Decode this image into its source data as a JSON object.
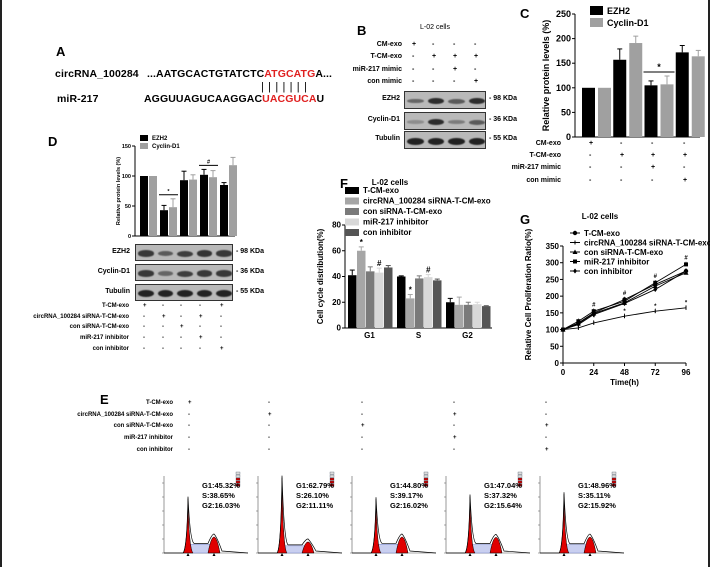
{
  "panelA": {
    "label": "A",
    "circ_name": "circRNA_100284",
    "circ_seq_prefix": "...AATGCACTGTATCTC",
    "circ_seq_match": "ATGCATG",
    "circ_seq_suffix": "A...",
    "mir_name": "miR-217",
    "mir_seq_prefix": "AGGUUAGUCAAGGAC",
    "mir_seq_match": "UACGUCA",
    "mir_seq_suffix": "U",
    "pairing": "|||||||",
    "match_color": "#e02020"
  },
  "panelB": {
    "label": "B",
    "title": "L-02 cells",
    "rows": [
      {
        "name": "CM-exo",
        "values": [
          "+",
          "-",
          "-",
          "-"
        ]
      },
      {
        "name": "T-CM-exo",
        "values": [
          "-",
          "+",
          "+",
          "+"
        ]
      },
      {
        "name": "miR-217 mimic",
        "values": [
          "-",
          "-",
          "+",
          "-"
        ]
      },
      {
        "name": "con mimic",
        "values": [
          "-",
          "-",
          "-",
          "+"
        ]
      }
    ],
    "blots": [
      {
        "name": "EZH2",
        "size": "- 98 KDa",
        "intensity": [
          0.4,
          0.9,
          0.5,
          0.9
        ]
      },
      {
        "name": "Cyclin-D1",
        "size": "- 36 KDa",
        "intensity": [
          0.05,
          0.9,
          0.2,
          0.5
        ]
      },
      {
        "name": "Tubulin",
        "size": "- 55 KDa",
        "intensity": [
          1,
          1,
          1,
          1
        ]
      }
    ]
  },
  "panelD": {
    "label": "D",
    "rows": [
      {
        "name": "T-CM-exo",
        "values": [
          "+",
          "-",
          "-",
          "-",
          "+"
        ]
      },
      {
        "name": "circRNA_100284 siRNA-T-CM-exo",
        "values": [
          "-",
          "+",
          "-",
          "+",
          "-"
        ]
      },
      {
        "name": "con siRNA-T-CM-exo",
        "values": [
          "-",
          "-",
          "+",
          "-",
          "-"
        ]
      },
      {
        "name": "miR-217 inhibitor",
        "values": [
          "-",
          "-",
          "-",
          "+",
          "-"
        ]
      },
      {
        "name": "con inhibitor",
        "values": [
          "-",
          "-",
          "-",
          "-",
          "+"
        ]
      }
    ],
    "blots": [
      {
        "name": "EZH2",
        "size": "- 98 KDa",
        "intensity": [
          0.8,
          0.5,
          0.75,
          0.85,
          0.8
        ]
      },
      {
        "name": "Cyclin-D1",
        "size": "- 36 KDa",
        "intensity": [
          0.8,
          0.4,
          0.75,
          0.8,
          0.8
        ]
      },
      {
        "name": "Tubulin",
        "size": "- 55 KDa",
        "intensity": [
          1,
          1,
          1,
          1,
          1
        ]
      }
    ]
  },
  "panelC": {
    "label": "C"
  },
  "panelF": {
    "label": "F"
  },
  "panelG": {
    "label": "G"
  },
  "panelE": {
    "label": "E",
    "rows": [
      {
        "name": "T-CM-exo",
        "values": [
          "+",
          "-",
          "-",
          "-",
          "-"
        ]
      },
      {
        "name": "circRNA_100284 siRNA-T-CM-exo",
        "values": [
          "-",
          "+",
          "-",
          "+",
          "-"
        ]
      },
      {
        "name": "con siRNA-T-CM-exo",
        "values": [
          "-",
          "-",
          "+",
          "-",
          "+"
        ]
      },
      {
        "name": "miR-217 inhibitor",
        "values": [
          "-",
          "-",
          "-",
          "+",
          "-"
        ]
      },
      {
        "name": "con inhibitor",
        "values": [
          "-",
          "-",
          "-",
          "-",
          "+"
        ]
      }
    ],
    "histograms": [
      {
        "g1": "G1:45.32%",
        "s": "S:38.65%",
        "g2": "G2:16.03%",
        "G1": 45.32,
        "S": 38.65,
        "G2": 16.03
      },
      {
        "g1": "G1:62.79%",
        "s": "S:26.10%",
        "g2": "G2:11.11%",
        "G1": 62.79,
        "S": 26.1,
        "G2": 11.11
      },
      {
        "g1": "G1:44.80%",
        "s": "S:39.17%",
        "g2": "G2:16.02%",
        "G1": 44.8,
        "S": 39.17,
        "G2": 16.02
      },
      {
        "g1": "G1:47.04%",
        "s": "S:37.32%",
        "g2": "G2:15.64%",
        "G1": 47.04,
        "S": 37.32,
        "G2": 15.64
      },
      {
        "g1": "G1:48.96%",
        "s": "S:35.11%",
        "g2": "G2:15.92%",
        "G1": 48.96,
        "S": 35.11,
        "G2": 15.92
      }
    ]
  },
  "chart_data": [
    {
      "id": "C",
      "type": "bar",
      "ylabel": "Relative protein levels (%)",
      "ylim": [
        0,
        250
      ],
      "yticks": [
        0,
        50,
        100,
        150,
        200,
        250
      ],
      "categories": [
        "1",
        "2",
        "3",
        "4"
      ],
      "series": [
        {
          "name": "EZH2",
          "color": "#000000",
          "values": [
            100,
            157,
            105,
            172
          ],
          "errors": [
            0,
            22,
            9,
            14
          ]
        },
        {
          "name": "Cyclin-D1",
          "color": "#a0a0a0",
          "values": [
            100,
            191,
            107,
            164
          ],
          "errors": [
            0,
            14,
            17,
            12
          ]
        }
      ],
      "annotations": [
        {
          "text": "*",
          "group": 2
        }
      ],
      "legend": "top-right",
      "table_rows": [
        {
          "name": "CM-exo",
          "values": [
            "+",
            "-",
            "-",
            "-"
          ]
        },
        {
          "name": "T-CM-exo",
          "values": [
            "-",
            "+",
            "+",
            "+"
          ]
        },
        {
          "name": "miR-217 mimic",
          "values": [
            "-",
            "-",
            "+",
            "-"
          ]
        },
        {
          "name": "con mimic",
          "values": [
            "-",
            "-",
            "-",
            "+"
          ]
        }
      ]
    },
    {
      "id": "D",
      "type": "bar",
      "ylabel": "Relative protein levels (%)",
      "ylim": [
        0,
        150
      ],
      "yticks": [
        0,
        50,
        100,
        150
      ],
      "categories": [
        "1",
        "2",
        "3",
        "4",
        "5"
      ],
      "series": [
        {
          "name": "EZH2",
          "color": "#000000",
          "values": [
            100,
            43,
            93,
            102,
            85
          ],
          "errors": [
            0,
            8,
            15,
            9,
            4
          ]
        },
        {
          "name": "Cyclin-D1",
          "color": "#a0a0a0",
          "values": [
            100,
            48,
            94,
            98,
            118
          ],
          "errors": [
            0,
            14,
            8,
            11,
            13
          ]
        }
      ],
      "annotations": [
        {
          "text": "*",
          "group": 1
        },
        {
          "text": "#",
          "group": 3
        }
      ],
      "legend": "top"
    },
    {
      "id": "F",
      "type": "bar",
      "title": "L-02 cells",
      "ylabel": "Cell cycle distribution(%)",
      "ylim": [
        0,
        80
      ],
      "yticks": [
        0,
        20,
        40,
        60,
        80
      ],
      "categories": [
        "G1",
        "S",
        "G2"
      ],
      "series": [
        {
          "name": "T-CM-exo",
          "color": "#000000",
          "values": [
            41,
            40,
            20
          ],
          "errors": [
            4,
            0.5,
            3
          ]
        },
        {
          "name": "circRNA_100284 siRNA-T-CM-exo",
          "color": "#a6a6a6",
          "values": [
            60,
            23,
            18
          ],
          "errors": [
            3,
            3,
            6
          ]
        },
        {
          "name": "con siRNA-T-CM-exo",
          "color": "#7a7a7a",
          "values": [
            44,
            38.5,
            18
          ],
          "errors": [
            3.5,
            2,
            2
          ]
        },
        {
          "name": "miR-217 inhibitor",
          "color": "#d8d8d8",
          "values": [
            43,
            39.5,
            18.5
          ],
          "errors": [
            3.5,
            2,
            1.5
          ]
        },
        {
          "name": "con inhibitor",
          "color": "#555555",
          "values": [
            47,
            37,
            17
          ],
          "errors": [
            1.5,
            1,
            0.3
          ]
        }
      ],
      "annotations": [
        {
          "text": "*",
          "category": 0,
          "series": 1
        },
        {
          "text": "#",
          "category": 0,
          "series": 3
        },
        {
          "text": "*",
          "category": 1,
          "series": 1
        },
        {
          "text": "#",
          "category": 1,
          "series": 3
        }
      ],
      "legend": "top"
    },
    {
      "id": "G",
      "type": "line",
      "title": "L-02 cells",
      "xlabel": "Time(h)",
      "ylabel": "Relative Cell Proliferation Ratio(%)",
      "xlim": [
        0,
        96
      ],
      "ylim": [
        0,
        350
      ],
      "xticks": [
        0,
        24,
        48,
        72,
        96
      ],
      "yticks": [
        0,
        50,
        100,
        150,
        200,
        250,
        300,
        350
      ],
      "x": [
        0,
        12,
        24,
        48,
        72,
        96
      ],
      "series": [
        {
          "name": "T-CM-exo",
          "marker": "circle",
          "values": [
            100,
            120,
            150,
            190,
            235,
            275
          ]
        },
        {
          "name": "circRNA_100284 siRNA-T-CM-exo",
          "marker": "none",
          "values": [
            100,
            105,
            120,
            140,
            155,
            165
          ]
        },
        {
          "name": "con siRNA-T-CM-exo",
          "marker": "triangle",
          "values": [
            100,
            118,
            148,
            180,
            230,
            270
          ]
        },
        {
          "name": "miR-217 inhibitor",
          "marker": "square",
          "values": [
            100,
            125,
            155,
            185,
            240,
            295
          ]
        },
        {
          "name": "con inhibitor",
          "marker": "diamond",
          "values": [
            100,
            115,
            145,
            178,
            220,
            275
          ]
        }
      ],
      "annotations": [
        {
          "text": "#",
          "x": 24
        },
        {
          "text": "#",
          "x": 48
        },
        {
          "text": "#",
          "x": 72
        },
        {
          "text": "#",
          "x": 96
        },
        {
          "text": "*",
          "x": 24
        },
        {
          "text": "*",
          "x": 48
        },
        {
          "text": "*",
          "x": 72
        },
        {
          "text": "*",
          "x": 96
        }
      ],
      "legend": "top-left"
    }
  ]
}
